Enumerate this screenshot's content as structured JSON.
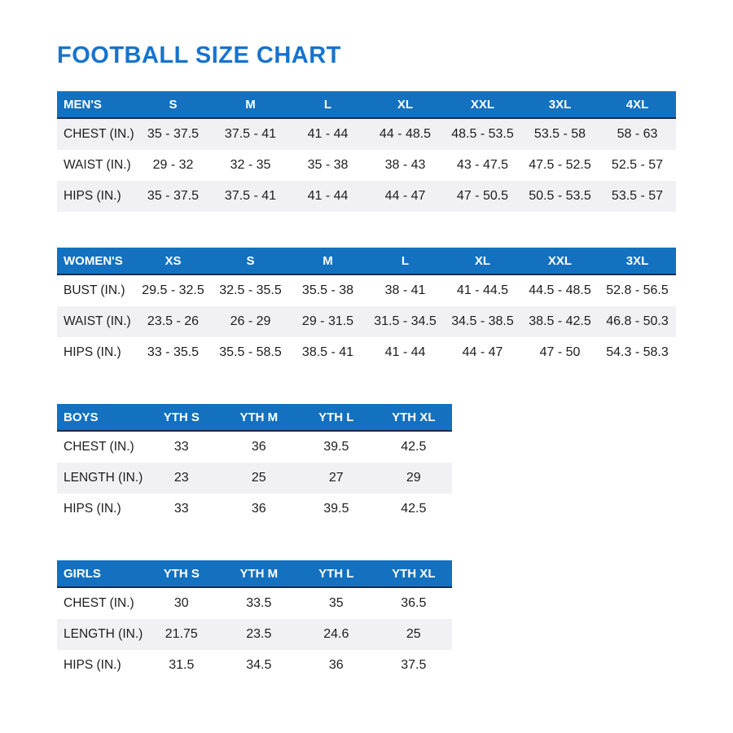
{
  "page": {
    "title": "FOOTBALL SIZE CHART"
  },
  "colors": {
    "title_blue": "#1673cd",
    "header_blue": "#1371c0",
    "header_border_navy": "#1b2c49",
    "stripe_gray": "#f1f1f3",
    "body_text": "#1d1d1f"
  },
  "tables": [
    {
      "id": "mens",
      "stripe": "first",
      "header": [
        "MEN'S",
        "S",
        "M",
        "L",
        "XL",
        "XXL",
        "3XL",
        "4XL"
      ],
      "rows": [
        {
          "label": "CHEST (IN.)",
          "values": [
            "35 - 37.5",
            "37.5 - 41",
            "41 - 44",
            "44 - 48.5",
            "48.5 - 53.5",
            "53.5 - 58",
            "58 - 63"
          ]
        },
        {
          "label": "WAIST (IN.)",
          "values": [
            "29 - 32",
            "32 - 35",
            "35 - 38",
            "38 - 43",
            "43 - 47.5",
            "47.5 - 52.5",
            "52.5 - 57"
          ]
        },
        {
          "label": "HIPS (IN.)",
          "values": [
            "35 - 37.5",
            "37.5 - 41",
            "41 - 44",
            "44 - 47",
            "47 - 50.5",
            "50.5 - 53.5",
            "53.5 - 57"
          ]
        }
      ]
    },
    {
      "id": "womens",
      "stripe": "second",
      "header": [
        "WOMEN'S",
        "XS",
        "S",
        "M",
        "L",
        "XL",
        "XXL",
        "3XL"
      ],
      "rows": [
        {
          "label": "BUST (IN.)",
          "values": [
            "29.5 - 32.5",
            "32.5 - 35.5",
            "35.5 - 38",
            "38 - 41",
            "41 - 44.5",
            "44.5 - 48.5",
            "52.8 - 56.5"
          ]
        },
        {
          "label": "WAIST (IN.)",
          "values": [
            "23.5 - 26",
            "26 - 29",
            "29 - 31.5",
            "31.5 - 34.5",
            "34.5 - 38.5",
            "38.5 - 42.5",
            "46.8 - 50.3"
          ]
        },
        {
          "label": "HIPS (IN.)",
          "values": [
            "33 - 35.5",
            "35.5 - 58.5",
            "38.5 - 41",
            "41 - 44",
            "44 - 47",
            "47 - 50",
            "54.3 - 58.3"
          ]
        }
      ]
    },
    {
      "id": "boys",
      "stripe": "second",
      "header": [
        "BOYS",
        "YTH S",
        "YTH M",
        "YTH L",
        "YTH XL"
      ],
      "rows": [
        {
          "label": "CHEST (IN.)",
          "values": [
            "33",
            "36",
            "39.5",
            "42.5"
          ]
        },
        {
          "label": "LENGTH (IN.)",
          "values": [
            "23",
            "25",
            "27",
            "29"
          ]
        },
        {
          "label": "HIPS (IN.)",
          "values": [
            "33",
            "36",
            "39.5",
            "42.5"
          ]
        }
      ]
    },
    {
      "id": "girls",
      "stripe": "second",
      "header": [
        "GIRLS",
        "YTH S",
        "YTH M",
        "YTH L",
        "YTH XL"
      ],
      "rows": [
        {
          "label": "CHEST (IN.)",
          "values": [
            "30",
            "33.5",
            "35",
            "36.5"
          ]
        },
        {
          "label": "LENGTH (IN.)",
          "values": [
            "21.75",
            "23.5",
            "24.6",
            "25"
          ]
        },
        {
          "label": "HIPS (IN.)",
          "values": [
            "31.5",
            "34.5",
            "36",
            "37.5"
          ]
        }
      ]
    }
  ],
  "layout": {
    "label_col_width": 95,
    "value_col_width": 95
  }
}
